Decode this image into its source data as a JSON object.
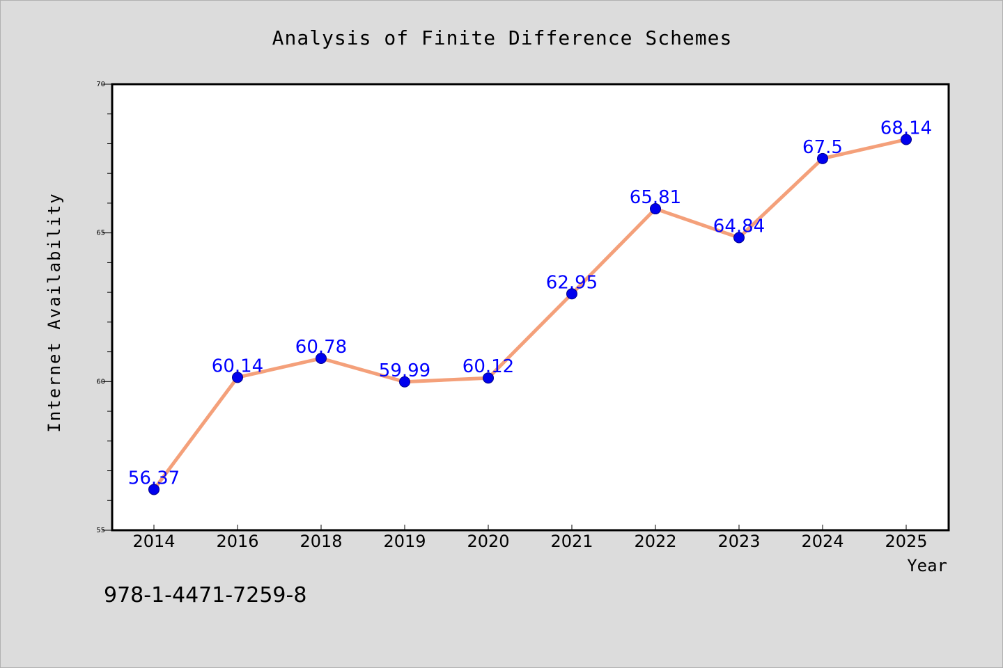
{
  "figure": {
    "background": "#dcdcdc",
    "footer_text": "978-1-4471-7259-8"
  },
  "chart_data": {
    "type": "line",
    "title": "Analysis of Finite Difference Schemes",
    "xlabel": "Year",
    "ylabel": "Internet Availability",
    "categories": [
      "2014",
      "2016",
      "2018",
      "2019",
      "2020",
      "2021",
      "2022",
      "2023",
      "2024",
      "2025"
    ],
    "series": [
      {
        "values": [
          56.37,
          60.14,
          60.78,
          59.99,
          60.12,
          62.95,
          65.81,
          64.84,
          67.5,
          68.14
        ],
        "data_labels": [
          "56.37",
          "60.14",
          "60.78",
          "59.99",
          "60.12",
          "62.95",
          "65.81",
          "64.84",
          "67.5",
          "68.14"
        ],
        "line_color": "#f4a07a",
        "marker_color": "#0000ee",
        "label_color": "#0000ff"
      }
    ],
    "ylim": [
      55,
      70
    ],
    "y_ticks": [
      55,
      60,
      65,
      70
    ],
    "y_tick_labels": [
      "55",
      "60",
      "65",
      "70"
    ],
    "y_minor_step": 1,
    "grid": false,
    "legend": "none"
  }
}
